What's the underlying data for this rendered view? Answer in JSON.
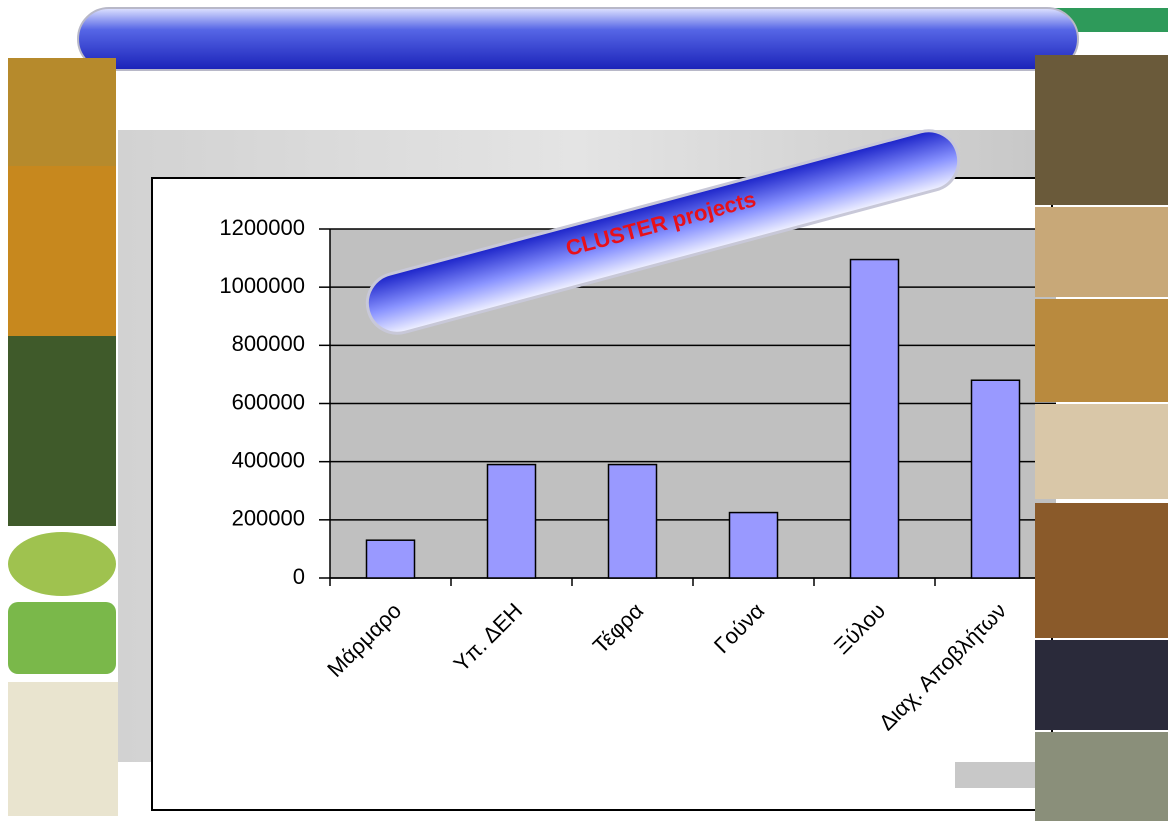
{
  "chart_data": {
    "type": "bar",
    "annotation": "CLUSTER projects",
    "categories": [
      "Μάρμαρο",
      "Υπ. ΔΕΗ",
      "Τέφρα",
      "Γούνα",
      "Ξύλου",
      "Διαχ. Αποβλήτων"
    ],
    "values": [
      130000,
      390000,
      390000,
      225000,
      1095000,
      680000
    ],
    "color": "#9999ff",
    "ylim": [
      0,
      1200000
    ],
    "yticks": [
      0,
      200000,
      400000,
      600000,
      800000,
      1000000,
      1200000
    ],
    "grid": true
  }
}
